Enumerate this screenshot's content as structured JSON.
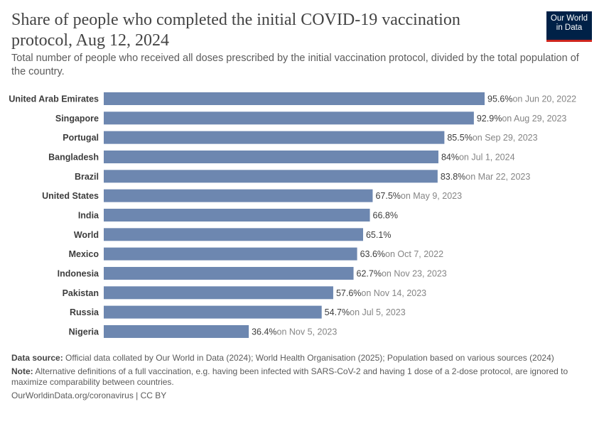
{
  "header": {
    "title": "Share of people who completed the initial COVID-19 vaccination protocol, Aug 12, 2024",
    "subtitle": "Total number of people who received all doses prescribed by the initial vaccination protocol, divided by the total population of the country.",
    "logo_text": "Our World in Data"
  },
  "chart_data": {
    "type": "bar",
    "orientation": "horizontal",
    "title": "Share of people who completed the initial COVID-19 vaccination protocol, Aug 12, 2024",
    "categories": [
      "United Arab Emirates",
      "Singapore",
      "Portugal",
      "Bangladesh",
      "Brazil",
      "United States",
      "India",
      "World",
      "Mexico",
      "Indonesia",
      "Pakistan",
      "Russia",
      "Nigeria"
    ],
    "values": [
      95.6,
      92.9,
      85.5,
      84,
      83.8,
      67.5,
      66.8,
      65.1,
      63.6,
      62.7,
      57.6,
      54.7,
      36.4
    ],
    "value_labels": [
      "95.6%",
      "92.9%",
      "85.5%",
      "84%",
      "83.8%",
      "67.5%",
      "66.8%",
      "65.1%",
      "63.6%",
      "62.7%",
      "57.6%",
      "54.7%",
      "36.4%"
    ],
    "date_labels": [
      "on Jun 20, 2022",
      "on Aug 29, 2023",
      "on Sep 29, 2023",
      "on Jul 1, 2024",
      "on Mar 22, 2023",
      "on May 9, 2023",
      "",
      "",
      "on Oct 7, 2022",
      "on Nov 23, 2023",
      "on Nov 14, 2023",
      "on Jul 5, 2023",
      "on Nov 5, 2023"
    ],
    "xlim": [
      0,
      100
    ],
    "grid": false,
    "bar_color": "#6d87b0"
  },
  "footer": {
    "source_label": "Data source:",
    "source_text": "Official data collated by Our World in Data (2024); World Health Organisation (2025); Population based on various sources (2024)",
    "note_label": "Note:",
    "note_text": "Alternative definitions of a full vaccination, e.g. having been infected with SARS-CoV-2 and having 1 dose of a 2-dose protocol, are ignored to maximize comparability between countries.",
    "link": "OurWorldinData.org/coronavirus | CC BY"
  }
}
